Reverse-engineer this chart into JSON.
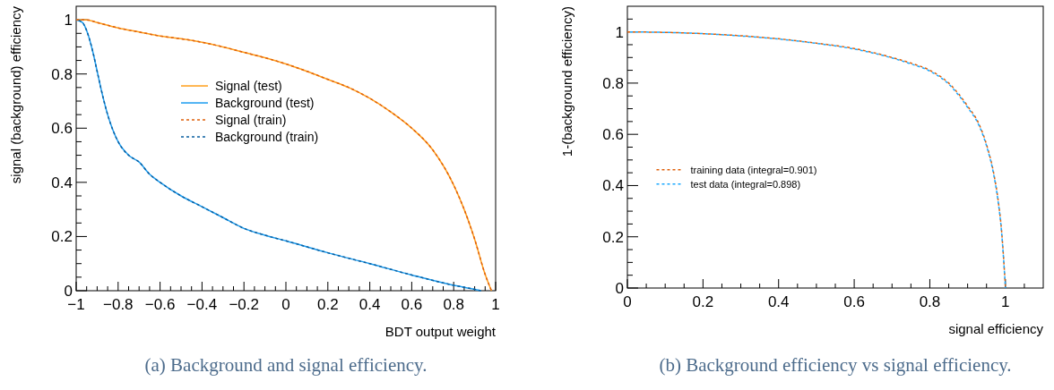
{
  "chart_data": [
    {
      "type": "line",
      "xlabel": "BDT output weight",
      "ylabel": "signal (background) efficiency",
      "legend": "top",
      "grid": false,
      "xlim": [
        -1,
        1
      ],
      "ylim": [
        0,
        1.05
      ],
      "xticks": [
        {
          "value": -1,
          "label": "−1"
        },
        {
          "value": -0.95,
          "label": null
        },
        {
          "value": -0.9,
          "label": null
        },
        {
          "value": -0.85,
          "label": null
        },
        {
          "value": -0.8,
          "label": "−0.8"
        },
        {
          "value": -0.75,
          "label": null
        },
        {
          "value": -0.7,
          "label": null
        },
        {
          "value": -0.65,
          "label": null
        },
        {
          "value": -0.6,
          "label": "−0.6"
        },
        {
          "value": -0.55,
          "label": null
        },
        {
          "value": -0.5,
          "label": null
        },
        {
          "value": -0.45,
          "label": null
        },
        {
          "value": -0.4,
          "label": "−0.4"
        },
        {
          "value": -0.35,
          "label": null
        },
        {
          "value": -0.3,
          "label": null
        },
        {
          "value": -0.25,
          "label": null
        },
        {
          "value": -0.2,
          "label": "−0.2"
        },
        {
          "value": -0.15,
          "label": null
        },
        {
          "value": -0.1,
          "label": null
        },
        {
          "value": -0.05,
          "label": null
        },
        0,
        {
          "value": 0.05,
          "label": null
        },
        {
          "value": 0.1,
          "label": null
        },
        {
          "value": 0.15,
          "label": null
        },
        0.2,
        {
          "value": 0.25,
          "label": null
        },
        {
          "value": 0.3,
          "label": null
        },
        {
          "value": 0.35,
          "label": null
        },
        0.4,
        {
          "value": 0.45,
          "label": null
        },
        {
          "value": 0.5,
          "label": null
        },
        {
          "value": 0.55,
          "label": null
        },
        0.6,
        {
          "value": 0.65,
          "label": null
        },
        {
          "value": 0.7,
          "label": null
        },
        {
          "value": 0.75,
          "label": null
        },
        0.8,
        {
          "value": 0.85,
          "label": null
        },
        {
          "value": 0.9,
          "label": null
        },
        {
          "value": 0.95,
          "label": null
        },
        1
      ],
      "yticks": [
        0,
        {
          "value": 0.05,
          "label": null
        },
        {
          "value": 0.1,
          "label": null
        },
        {
          "value": 0.15,
          "label": null
        },
        0.2,
        {
          "value": 0.25,
          "label": null
        },
        {
          "value": 0.3,
          "label": null
        },
        {
          "value": 0.35,
          "label": null
        },
        0.4,
        {
          "value": 0.45,
          "label": null
        },
        {
          "value": 0.5,
          "label": null
        },
        {
          "value": 0.55,
          "label": null
        },
        0.6,
        {
          "value": 0.65,
          "label": null
        },
        {
          "value": 0.7,
          "label": null
        },
        {
          "value": 0.75,
          "label": null
        },
        0.8,
        {
          "value": 0.85,
          "label": null
        },
        {
          "value": 0.9,
          "label": null
        },
        {
          "value": 0.95,
          "label": null
        },
        1
      ],
      "annotations": [
        "(a) Background and signal efficiency."
      ],
      "series": [
        {
          "name": "Signal (test)",
          "color": "#ff9e1a",
          "line_style": "solid",
          "x": [
            -1,
            -0.95,
            -0.9,
            -0.8,
            -0.7,
            -0.6,
            -0.5,
            -0.4,
            -0.3,
            -0.2,
            -0.1,
            0,
            0.1,
            0.2,
            0.3,
            0.4,
            0.5,
            0.6,
            0.7,
            0.8,
            0.85,
            0.9,
            0.95,
            0.98
          ],
          "values": [
            1,
            1,
            0.99,
            0.97,
            0.955,
            0.94,
            0.93,
            0.917,
            0.9,
            0.88,
            0.86,
            0.837,
            0.81,
            0.78,
            0.75,
            0.71,
            0.66,
            0.6,
            0.52,
            0.39,
            0.3,
            0.19,
            0.06,
            0
          ]
        },
        {
          "name": "Background (test)",
          "color": "#1a9cf0",
          "line_style": "solid",
          "x": [
            -1,
            -0.97,
            -0.95,
            -0.92,
            -0.9,
            -0.88,
            -0.85,
            -0.8,
            -0.75,
            -0.7,
            -0.65,
            -0.6,
            -0.5,
            -0.4,
            -0.3,
            -0.2,
            -0.1,
            0,
            0.2,
            0.4,
            0.6,
            0.8,
            0.9,
            0.93
          ],
          "values": [
            1,
            0.99,
            0.96,
            0.88,
            0.81,
            0.74,
            0.65,
            0.55,
            0.5,
            0.475,
            0.43,
            0.4,
            0.35,
            0.31,
            0.27,
            0.23,
            0.205,
            0.184,
            0.14,
            0.1,
            0.058,
            0.02,
            0.005,
            0
          ]
        },
        {
          "name": "Signal (train)",
          "color": "#e0600a",
          "line_style": "dashed",
          "x": [
            -1,
            -0.95,
            -0.9,
            -0.8,
            -0.7,
            -0.6,
            -0.5,
            -0.4,
            -0.3,
            -0.2,
            -0.1,
            0,
            0.1,
            0.2,
            0.3,
            0.4,
            0.5,
            0.6,
            0.7,
            0.8,
            0.85,
            0.9,
            0.95,
            0.98
          ],
          "values": [
            1,
            1,
            0.99,
            0.97,
            0.955,
            0.94,
            0.93,
            0.917,
            0.9,
            0.88,
            0.86,
            0.837,
            0.81,
            0.78,
            0.75,
            0.71,
            0.66,
            0.6,
            0.52,
            0.39,
            0.3,
            0.19,
            0.06,
            0
          ]
        },
        {
          "name": "Background (train)",
          "color": "#0a5fa0",
          "line_style": "dashed",
          "x": [
            -1,
            -0.97,
            -0.95,
            -0.92,
            -0.9,
            -0.88,
            -0.85,
            -0.8,
            -0.75,
            -0.7,
            -0.65,
            -0.6,
            -0.5,
            -0.4,
            -0.3,
            -0.2,
            -0.1,
            0,
            0.2,
            0.4,
            0.6,
            0.8,
            0.9,
            0.93
          ],
          "values": [
            1,
            0.99,
            0.96,
            0.88,
            0.81,
            0.74,
            0.65,
            0.55,
            0.5,
            0.475,
            0.43,
            0.4,
            0.35,
            0.31,
            0.27,
            0.23,
            0.205,
            0.184,
            0.14,
            0.1,
            0.058,
            0.02,
            0.005,
            0
          ]
        }
      ]
    },
    {
      "type": "line",
      "xlabel": "signal efficiency",
      "ylabel": "1-(background efficiency)",
      "legend": "left",
      "grid": false,
      "xlim": [
        0,
        1.1
      ],
      "ylim": [
        0,
        1.1
      ],
      "xticks": [
        0,
        {
          "value": 0.05,
          "label": null
        },
        {
          "value": 0.1,
          "label": null
        },
        {
          "value": 0.15,
          "label": null
        },
        0.2,
        {
          "value": 0.25,
          "label": null
        },
        {
          "value": 0.3,
          "label": null
        },
        {
          "value": 0.35,
          "label": null
        },
        0.4,
        {
          "value": 0.45,
          "label": null
        },
        {
          "value": 0.5,
          "label": null
        },
        {
          "value": 0.55,
          "label": null
        },
        0.6,
        {
          "value": 0.65,
          "label": null
        },
        {
          "value": 0.7,
          "label": null
        },
        {
          "value": 0.75,
          "label": null
        },
        0.8,
        {
          "value": 0.85,
          "label": null
        },
        {
          "value": 0.9,
          "label": null
        },
        {
          "value": 0.95,
          "label": null
        },
        1,
        {
          "value": 1.05,
          "label": null
        }
      ],
      "yticks": [
        0,
        {
          "value": 0.05,
          "label": null
        },
        {
          "value": 0.1,
          "label": null
        },
        {
          "value": 0.15,
          "label": null
        },
        0.2,
        {
          "value": 0.25,
          "label": null
        },
        {
          "value": 0.3,
          "label": null
        },
        {
          "value": 0.35,
          "label": null
        },
        0.4,
        {
          "value": 0.45,
          "label": null
        },
        {
          "value": 0.5,
          "label": null
        },
        {
          "value": 0.55,
          "label": null
        },
        0.6,
        {
          "value": 0.65,
          "label": null
        },
        {
          "value": 0.7,
          "label": null
        },
        {
          "value": 0.75,
          "label": null
        },
        0.8,
        {
          "value": 0.85,
          "label": null
        },
        {
          "value": 0.9,
          "label": null
        },
        {
          "value": 0.95,
          "label": null
        },
        1,
        {
          "value": 1.05,
          "label": null
        }
      ],
      "annotations": [
        "(b) Background efficiency vs signal efficiency."
      ],
      "series": [
        {
          "name": "training data (integral=0.901)",
          "color": "#e0600a",
          "line_style": "dashed",
          "x": [
            0,
            0.1,
            0.2,
            0.3,
            0.4,
            0.5,
            0.6,
            0.7,
            0.75,
            0.8,
            0.85,
            0.9,
            0.93,
            0.95,
            0.97,
            0.98,
            0.99,
            0.995,
            1
          ],
          "values": [
            1,
            0.998,
            0.993,
            0.985,
            0.973,
            0.956,
            0.935,
            0.9,
            0.878,
            0.85,
            0.8,
            0.71,
            0.64,
            0.56,
            0.44,
            0.35,
            0.22,
            0.12,
            0
          ]
        },
        {
          "name": "test data (integral=0.898)",
          "color": "#1aa8ff",
          "line_style": "dashed",
          "x": [
            0,
            0.1,
            0.2,
            0.3,
            0.4,
            0.5,
            0.6,
            0.7,
            0.75,
            0.8,
            0.85,
            0.9,
            0.93,
            0.95,
            0.97,
            0.98,
            0.99,
            0.995,
            1
          ],
          "values": [
            1,
            0.998,
            0.993,
            0.984,
            0.972,
            0.955,
            0.933,
            0.898,
            0.875,
            0.847,
            0.796,
            0.705,
            0.635,
            0.555,
            0.435,
            0.345,
            0.215,
            0.115,
            0
          ]
        }
      ]
    }
  ]
}
